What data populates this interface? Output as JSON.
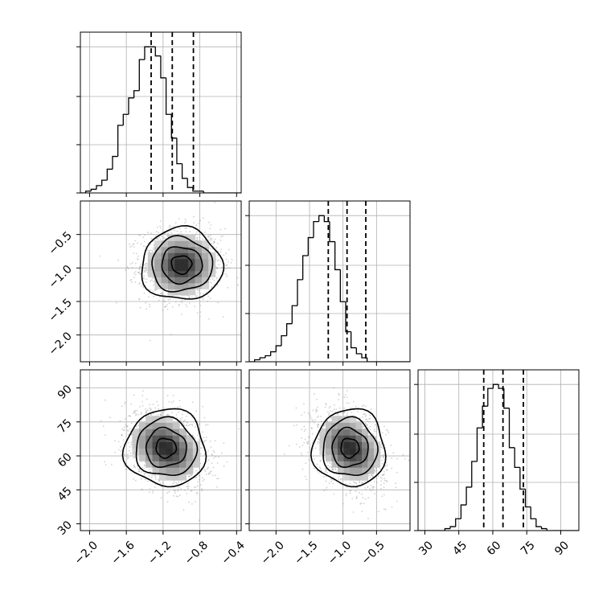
{
  "figure": {
    "background": "#ffffff",
    "line_color": "#000000",
    "grid_color": "#b0b0b0",
    "scatter_color": "#9a9a9a"
  },
  "chart_data": [
    {
      "id": "hist-p1",
      "type": "histogram",
      "title": "",
      "xlabel": "",
      "ylabel": "",
      "xlim": [
        -2.1,
        -0.35
      ],
      "bin_start": -2.1,
      "bin_width": 0.0583,
      "counts": [
        0,
        1,
        2,
        4,
        7,
        13,
        20,
        37,
        43,
        52,
        56,
        73,
        80,
        80,
        75,
        63,
        43,
        30,
        16,
        8,
        3,
        1,
        1,
        0,
        0,
        0,
        0,
        0,
        0,
        0
      ],
      "quantiles": [
        -1.33,
        -1.1,
        -0.87
      ],
      "grid": true
    },
    {
      "id": "scatter-p1-p2",
      "type": "scatter",
      "title": "",
      "xlabel": "",
      "ylabel": "",
      "xlim": [
        -2.1,
        -0.35
      ],
      "ylim": [
        -2.4,
        0.0
      ],
      "center": {
        "x": -1.0,
        "y": -0.95
      },
      "spread": {
        "x": 0.22,
        "y": 0.27
      },
      "correlation": 0.0,
      "y_ticks": [
        "−0.5",
        "−1.0",
        "−1.5",
        "−2.0"
      ],
      "y_tick_values": [
        -0.5,
        -1.0,
        -1.5,
        -2.0
      ],
      "grid": true
    },
    {
      "id": "hist-p2",
      "type": "histogram",
      "title": "",
      "xlabel": "",
      "ylabel": "",
      "xlim": [
        -2.4,
        0.0
      ],
      "bin_start": -2.4,
      "bin_width": 0.08,
      "counts": [
        0,
        1,
        2,
        3,
        5,
        8,
        13,
        19,
        28,
        41,
        53,
        62,
        70,
        73,
        70,
        60,
        46,
        30,
        15,
        7,
        4,
        2,
        0,
        0,
        0,
        0,
        0,
        0,
        0,
        0
      ],
      "quantiles": [
        -1.22,
        -0.94,
        -0.66
      ],
      "grid": true
    },
    {
      "id": "scatter-p1-p3",
      "type": "scatter",
      "title": "",
      "xlabel": "",
      "ylabel": "",
      "xlim": [
        -2.1,
        -0.35
      ],
      "ylim": [
        27,
        98
      ],
      "center": {
        "x": -1.17,
        "y": 63.5
      },
      "spread": {
        "x": 0.22,
        "y": 8.5
      },
      "correlation": -0.3,
      "x_ticks": [
        "−2.0",
        "−1.6",
        "−1.2",
        "−0.8",
        "−0.4"
      ],
      "x_tick_values": [
        -2.0,
        -1.6,
        -1.2,
        -0.8,
        -0.4
      ],
      "y_ticks": [
        "90",
        "75",
        "60",
        "45",
        "30"
      ],
      "y_tick_values": [
        90,
        75,
        60,
        45,
        30
      ],
      "grid": true
    },
    {
      "id": "scatter-p2-p3",
      "type": "scatter",
      "title": "",
      "xlabel": "",
      "ylabel": "",
      "xlim": [
        -2.4,
        0.0
      ],
      "ylim": [
        27,
        98
      ],
      "center": {
        "x": -0.9,
        "y": 63.5
      },
      "spread": {
        "x": 0.27,
        "y": 8.5
      },
      "correlation": -0.3,
      "x_ticks": [
        "−2.0",
        "−1.5",
        "−1.0",
        "−0.5"
      ],
      "x_tick_values": [
        -2.0,
        -1.5,
        -1.0,
        -0.5
      ],
      "grid": true
    },
    {
      "id": "hist-p3",
      "type": "histogram",
      "title": "",
      "xlabel": "",
      "ylabel": "",
      "xlim": [
        27,
        98
      ],
      "bin_start": 27,
      "bin_width": 2.37,
      "counts": [
        0,
        0,
        0,
        0,
        0,
        1,
        2,
        6,
        13,
        22,
        35,
        52,
        63,
        72,
        74,
        72,
        62,
        42,
        32,
        21,
        12,
        6,
        2,
        1,
        0,
        0,
        0,
        0,
        0,
        0
      ],
      "quantiles": [
        56.0,
        64.5,
        73.5
      ],
      "x_ticks": [
        "30",
        "45",
        "60",
        "75",
        "90"
      ],
      "x_tick_values": [
        30,
        45,
        60,
        75,
        90
      ],
      "grid": true
    }
  ]
}
